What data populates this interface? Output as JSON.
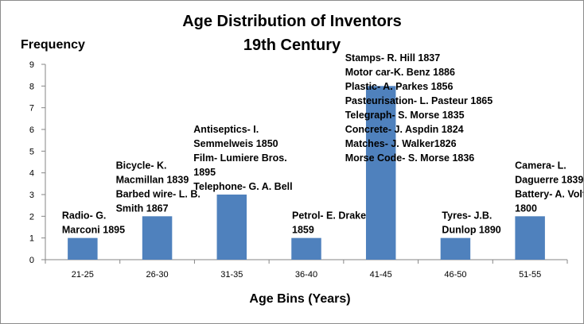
{
  "chart_data": {
    "type": "bar",
    "title": [
      "Age Distribution of Inventors",
      "19th Century"
    ],
    "xlabel": "Age Bins (Years)",
    "ylabel": "Frequency",
    "ylim": [
      0,
      9
    ],
    "yticks": [
      0,
      1,
      2,
      3,
      4,
      5,
      6,
      7,
      8,
      9
    ],
    "grid": false,
    "bar_color": "#4f81bd",
    "categories": [
      "21-25",
      "26-30",
      "31-35",
      "36-40",
      "41-45",
      "46-50",
      "51-55"
    ],
    "values": [
      1,
      2,
      3,
      1,
      8,
      1,
      2
    ],
    "annotations": [
      {
        "category": "21-25",
        "lines": [
          "Radio- G.",
          "Marconi 1895"
        ]
      },
      {
        "category": "26-30",
        "lines": [
          "Bicycle- K.",
          "Macmillan 1839",
          "Barbed wire- L. B.",
          "Smith 1867"
        ]
      },
      {
        "category": "31-35",
        "lines": [
          "Antiseptics- I.",
          "Semmelweis 1850",
          "Film- Lumiere Bros.",
          "1895",
          "Telephone- G. A. Bell"
        ]
      },
      {
        "category": "36-40",
        "lines": [
          "Petrol- E. Drake",
          "1859"
        ]
      },
      {
        "category": "41-45",
        "lines": [
          "Stamps- R. Hill 1837",
          "Motor car-K. Benz 1886",
          "Plastic- A. Parkes 1856",
          "Pasteurisation- L. Pasteur 1865",
          "Telegraph- S. Morse 1835",
          "Concrete- J. Aspdin 1824",
          "Matches- J. Walker1826",
          "Morse Code- S. Morse 1836"
        ]
      },
      {
        "category": "46-50",
        "lines": [
          "Tyres- J.B.",
          "Dunlop 1890"
        ]
      },
      {
        "category": "51-55",
        "lines": [
          "Camera- L.",
          "Daguerre 1839",
          "Battery- A. Volta",
          "1800"
        ]
      }
    ]
  }
}
